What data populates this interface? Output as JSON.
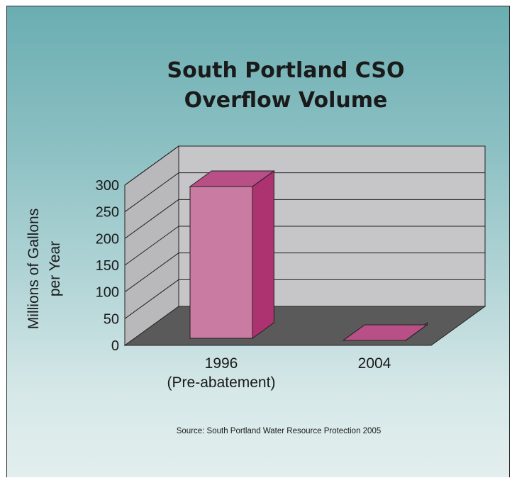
{
  "chart_data": {
    "type": "bar",
    "title_lines": [
      "South Portland CSO",
      "Overflow Volume"
    ],
    "categories": [
      {
        "lines": [
          "1996",
          "(Pre-abatement)"
        ]
      },
      {
        "lines": [
          "2004"
        ]
      }
    ],
    "values": [
      300,
      12
    ],
    "ylabel_lines": [
      "Millions of Gallons",
      "per Year"
    ],
    "xlabel": "",
    "ylim": [
      0,
      300
    ],
    "yticks": [
      0,
      50,
      100,
      150,
      200,
      250,
      300
    ],
    "grid": true,
    "style": "3d-column",
    "colors": {
      "bar_front": "#c97ba2",
      "bar_top": "#b84f86",
      "bar_side": "#ad3270",
      "back_wall": "#c6c6c8",
      "side_wall": "#b9b9bb",
      "floor": "#5a5a5a"
    },
    "source": "Source: South Portland Water Resource Protection 2005"
  }
}
